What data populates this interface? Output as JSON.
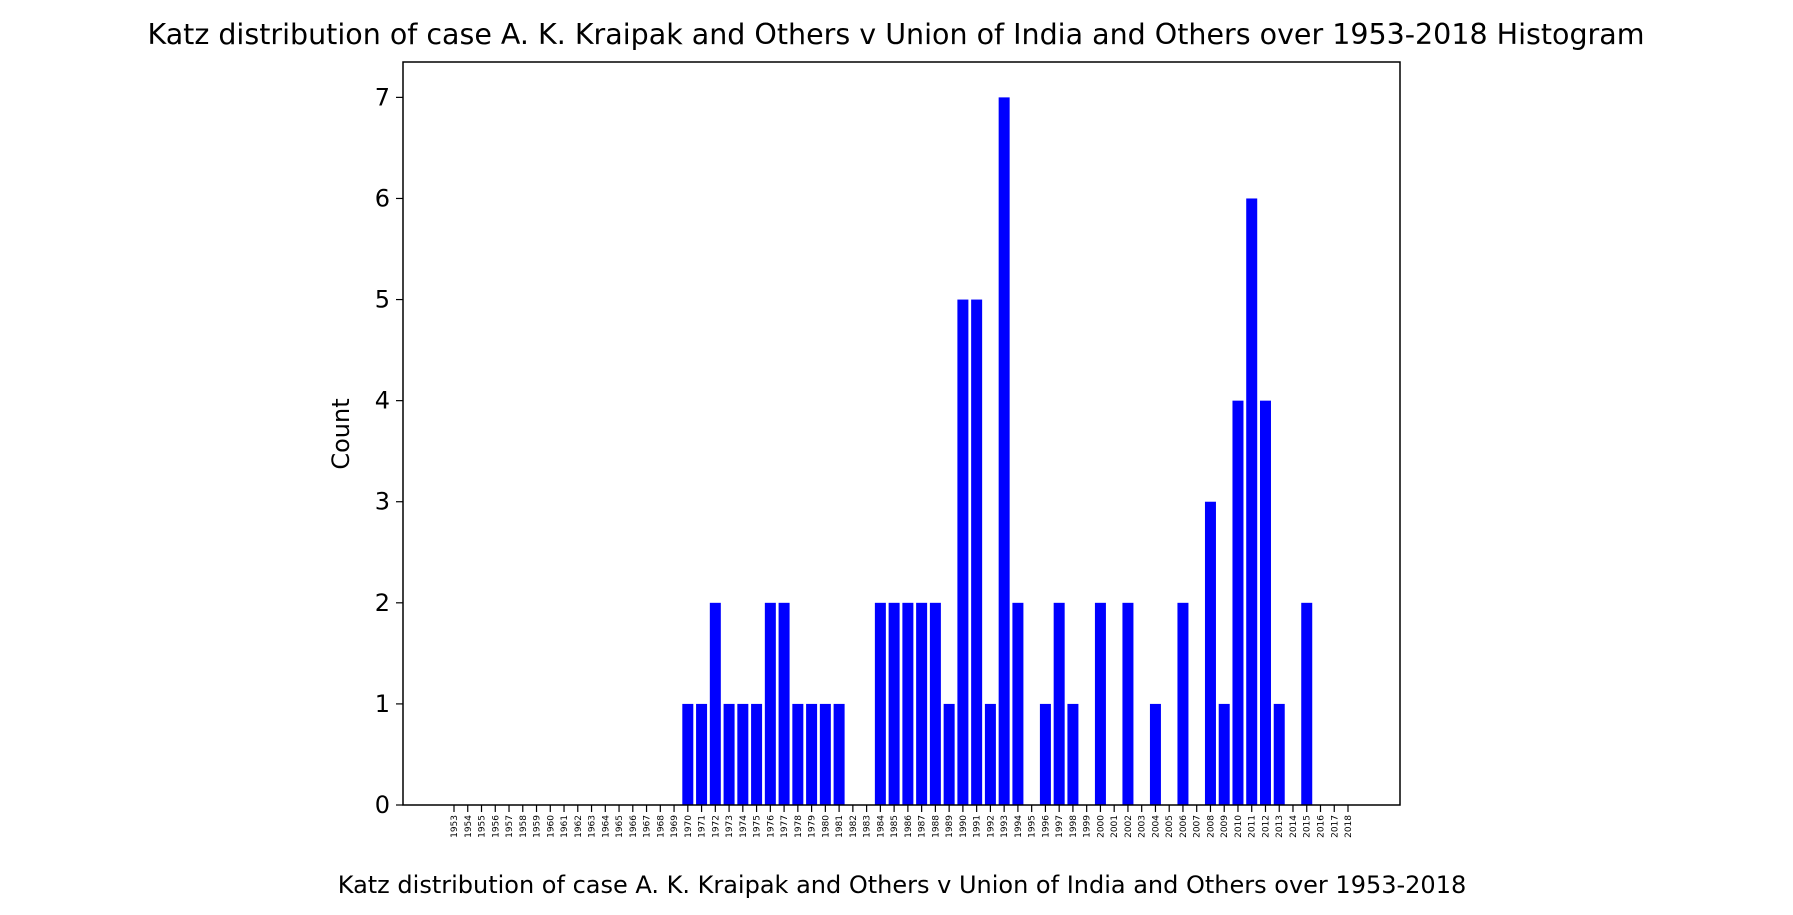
{
  "chart_data": {
    "type": "bar",
    "title": "Katz distribution of case A. K. Kraipak and Others v Union of India and Others over 1953-2018 Histogram",
    "xlabel": "Katz distribution of case A. K. Kraipak and Others v Union of India and Others over 1953-2018",
    "ylabel": "Count",
    "ylim": [
      0,
      7.35
    ],
    "yticks": [
      0,
      1,
      2,
      3,
      4,
      5,
      6,
      7
    ],
    "bar_color": "#0000ff",
    "grid": false,
    "categories": [
      "1953",
      "1954",
      "1955",
      "1956",
      "1957",
      "1958",
      "1959",
      "1960",
      "1961",
      "1962",
      "1963",
      "1964",
      "1965",
      "1966",
      "1967",
      "1968",
      "1969",
      "1970",
      "1971",
      "1972",
      "1973",
      "1974",
      "1975",
      "1976",
      "1977",
      "1978",
      "1979",
      "1980",
      "1981",
      "1982",
      "1983",
      "1984",
      "1985",
      "1986",
      "1987",
      "1988",
      "1989",
      "1990",
      "1991",
      "1992",
      "1993",
      "1994",
      "1995",
      "1996",
      "1997",
      "1998",
      "1999",
      "2000",
      "2001",
      "2002",
      "2003",
      "2004",
      "2005",
      "2006",
      "2007",
      "2008",
      "2009",
      "2010",
      "2011",
      "2012",
      "2013",
      "2014",
      "2015",
      "2016",
      "2017",
      "2018"
    ],
    "values": [
      0,
      0,
      0,
      0,
      0,
      0,
      0,
      0,
      0,
      0,
      0,
      0,
      0,
      0,
      0,
      0,
      0,
      1,
      1,
      2,
      1,
      1,
      1,
      2,
      2,
      1,
      1,
      1,
      1,
      0,
      0,
      2,
      2,
      2,
      2,
      2,
      1,
      5,
      5,
      1,
      7,
      2,
      0,
      1,
      2,
      1,
      0,
      2,
      0,
      2,
      0,
      1,
      0,
      2,
      0,
      3,
      1,
      4,
      6,
      4,
      1,
      0,
      2,
      0,
      0,
      0
    ]
  }
}
